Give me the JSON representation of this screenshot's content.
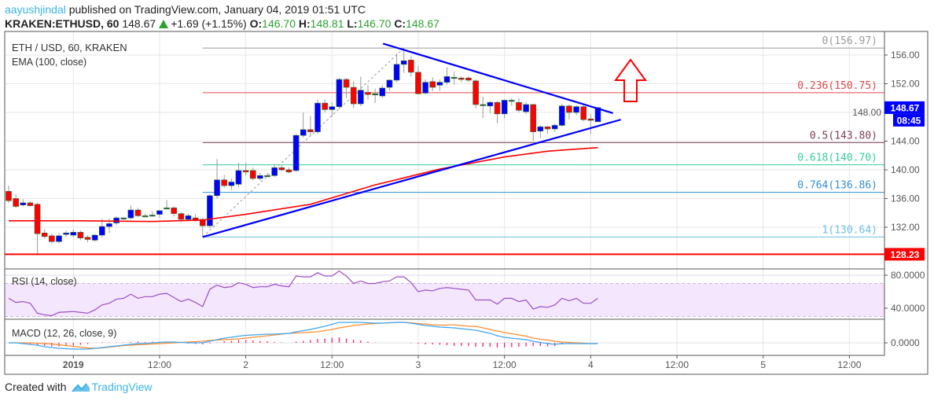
{
  "header": {
    "author": "aayushjindal",
    "published": " published on TradingView.com, January 04, 2019 01:51 UTC",
    "symbol": "KRAKEN:ETHUSD, 60",
    "last": "148.67",
    "change": "+1.69 (+1.15%)",
    "o_label": "O:",
    "o": "146.70",
    "h_label": "H:",
    "h": "148.81",
    "l_label": "L:",
    "l": "146.70",
    "c_label": "C:",
    "c": "148.67",
    "up_color": "#2ca02c"
  },
  "legend": {
    "main": "ETH / USD, 60, KRAKEN",
    "ema": "EMA (100, close)",
    "rsi": "RSI (14, close)",
    "macd": "MACD (12, 26, close, 9)"
  },
  "footer": {
    "created": "Created with",
    "brand": "TradingView"
  },
  "chart_data": {
    "type": "candlestick",
    "title": "ETH / USD, 60, KRAKEN",
    "colors": {
      "up": "#0000ff",
      "down": "#ff0000",
      "ema": "#ff0000",
      "trendline": "#0000ff",
      "rsi": "#9c4fc4",
      "macd": "#3da6f0",
      "signal": "#ff8c2e",
      "histogram": "#ff1f70"
    },
    "price_axis": {
      "ticks": [
        "156.00",
        "152.00",
        "148.00",
        "144.00",
        "140.00",
        "136.00",
        "132.00"
      ],
      "range": [
        127,
        159
      ]
    },
    "time_axis": {
      "ticks": [
        "2019",
        "12:00",
        "2",
        "12:00",
        "3",
        "12:00",
        "4",
        "12:00",
        "5",
        "12:00"
      ],
      "bold": "2019"
    },
    "grid": true,
    "candles_ohlc": [
      [
        137.0,
        137.8,
        135.4,
        135.7
      ],
      [
        136.0,
        136.6,
        134.7,
        134.9
      ],
      [
        135.1,
        135.9,
        134.9,
        135.4
      ],
      [
        135.4,
        135.6,
        134.9,
        135.0
      ],
      [
        135.2,
        135.4,
        128.1,
        131.1
      ],
      [
        131.2,
        131.7,
        130.4,
        130.7
      ],
      [
        130.8,
        131.1,
        129.8,
        130.0
      ],
      [
        130.0,
        131.2,
        129.8,
        130.8
      ],
      [
        131.0,
        131.5,
        130.6,
        131.2
      ],
      [
        130.9,
        131.7,
        130.6,
        131.3
      ],
      [
        131.3,
        131.5,
        130.2,
        130.5
      ],
      [
        130.6,
        130.9,
        129.9,
        130.3
      ],
      [
        130.2,
        131.0,
        130.0,
        130.9
      ],
      [
        130.9,
        133.2,
        130.6,
        132.1
      ],
      [
        132.1,
        133.2,
        131.2,
        132.5
      ],
      [
        132.6,
        133.5,
        132.3,
        133.3
      ],
      [
        133.2,
        133.4,
        133.0,
        133.3
      ],
      [
        133.3,
        135.0,
        133.1,
        134.4
      ],
      [
        134.4,
        134.7,
        133.4,
        133.6
      ],
      [
        133.6,
        133.9,
        133.4,
        133.6
      ],
      [
        133.6,
        134.2,
        133.5,
        133.7
      ],
      [
        133.8,
        134.4,
        133.3,
        134.3
      ],
      [
        134.7,
        135.8,
        134.5,
        134.7
      ],
      [
        134.7,
        134.9,
        133.5,
        133.9
      ],
      [
        133.9,
        134.1,
        132.7,
        133.1
      ],
      [
        133.1,
        133.9,
        132.9,
        133.6
      ],
      [
        133.3,
        133.8,
        132.8,
        132.9
      ],
      [
        133.1,
        133.3,
        130.64,
        132.2
      ],
      [
        132.2,
        136.6,
        131.9,
        136.4
      ],
      [
        136.4,
        141.5,
        136.0,
        138.6
      ],
      [
        138.6,
        139.3,
        137.5,
        137.8
      ],
      [
        137.8,
        138.8,
        137.2,
        138.3
      ],
      [
        138.0,
        141.0,
        137.6,
        139.9
      ],
      [
        139.9,
        141.0,
        139.2,
        139.7
      ],
      [
        139.9,
        140.3,
        138.5,
        138.8
      ],
      [
        138.8,
        139.6,
        138.5,
        139.2
      ],
      [
        139.2,
        139.6,
        139.0,
        139.2
      ],
      [
        139.2,
        140.8,
        139.0,
        140.3
      ],
      [
        140.3,
        140.6,
        139.8,
        140.0
      ],
      [
        140.0,
        140.3,
        139.5,
        139.7
      ],
      [
        139.9,
        145.0,
        139.7,
        144.8
      ],
      [
        144.8,
        148.0,
        144.5,
        145.6
      ],
      [
        145.6,
        147.5,
        144.8,
        145.3
      ],
      [
        145.3,
        149.8,
        145.0,
        149.3
      ],
      [
        149.3,
        149.8,
        148.0,
        148.4
      ],
      [
        148.4,
        149.4,
        147.4,
        148.8
      ],
      [
        148.8,
        152.8,
        148.5,
        152.6
      ],
      [
        152.6,
        152.8,
        150.0,
        151.5
      ],
      [
        151.5,
        152.3,
        148.6,
        149.2
      ],
      [
        149.2,
        153.0,
        148.9,
        151.1
      ],
      [
        150.8,
        151.8,
        149.8,
        150.5
      ],
      [
        150.6,
        151.3,
        149.3,
        150.6
      ],
      [
        150.3,
        151.8,
        150.0,
        151.4
      ],
      [
        151.5,
        152.6,
        151.0,
        152.5
      ],
      [
        152.5,
        156.2,
        152.2,
        154.7
      ],
      [
        154.7,
        156.97,
        153.5,
        155.2
      ],
      [
        155.3,
        155.8,
        153.0,
        153.6
      ],
      [
        153.6,
        154.5,
        150.5,
        150.6
      ],
      [
        150.7,
        152.6,
        150.5,
        152.2
      ],
      [
        152.3,
        152.9,
        151.0,
        151.5
      ],
      [
        151.8,
        152.6,
        151.0,
        152.2
      ],
      [
        152.2,
        154.3,
        151.9,
        153.0
      ],
      [
        152.9,
        153.7,
        151.9,
        152.8
      ],
      [
        152.8,
        153.0,
        152.2,
        152.6
      ],
      [
        152.8,
        153.0,
        152.2,
        152.5
      ],
      [
        152.4,
        152.6,
        148.6,
        149.1
      ],
      [
        149.1,
        150.2,
        147.2,
        149.0
      ],
      [
        148.9,
        149.6,
        147.9,
        149.4
      ],
      [
        149.4,
        149.6,
        146.5,
        147.8
      ],
      [
        147.8,
        149.8,
        147.2,
        149.7
      ],
      [
        149.7,
        150.0,
        148.9,
        149.7
      ],
      [
        149.4,
        150.0,
        148.0,
        148.3
      ],
      [
        148.1,
        149.5,
        147.8,
        149.1
      ],
      [
        149.1,
        149.2,
        144.0,
        145.3
      ],
      [
        145.4,
        146.2,
        144.4,
        146.0
      ],
      [
        146.0,
        146.1,
        145.0,
        145.7
      ],
      [
        145.7,
        146.4,
        145.3,
        146.2
      ],
      [
        146.2,
        149.2,
        146.0,
        148.9
      ],
      [
        148.9,
        149.1,
        147.0,
        148.0
      ],
      [
        148.0,
        149.0,
        147.6,
        148.8
      ],
      [
        148.8,
        149.2,
        146.8,
        147.0
      ],
      [
        147.1,
        147.8,
        145.0,
        146.9
      ],
      [
        146.7,
        148.81,
        146.7,
        148.67
      ]
    ],
    "ema_100": [
      [
        0,
        132.9
      ],
      [
        10,
        132.9
      ],
      [
        20,
        132.8
      ],
      [
        27,
        133.0
      ],
      [
        33,
        133.8
      ],
      [
        42,
        135.2
      ],
      [
        51,
        137.9
      ],
      [
        60,
        140.1
      ],
      [
        69,
        141.8
      ],
      [
        75,
        142.6
      ],
      [
        82,
        143.1
      ]
    ],
    "fib_levels": [
      {
        "label": "0(156.97)",
        "price": 156.97,
        "color": "#9b9b9b"
      },
      {
        "label": "0.236(150.75)",
        "price": 150.75,
        "color": "#e0474c"
      },
      {
        "label": "0.5(143.80)",
        "price": 143.8,
        "color": "#7b3f5a"
      },
      {
        "label": "0.618(140.70)",
        "price": 140.7,
        "color": "#35cf97"
      },
      {
        "label": "0.764(136.86)",
        "price": 136.86,
        "color": "#2f8fd6"
      },
      {
        "label": "1(130.64)",
        "price": 130.64,
        "color": "#6cbfe6"
      }
    ],
    "support_line": {
      "price": 128.23,
      "label": "128.23",
      "color": "#ff0000"
    },
    "trendlines": [
      {
        "name": "upper",
        "from": [
          52.1,
          157.6
        ],
        "to": [
          84.1,
          147.9
        ]
      },
      {
        "name": "lower",
        "from": [
          27,
          130.64
        ],
        "to": [
          85.2,
          147.0
        ]
      }
    ],
    "fib_anchor": {
      "from": [
        27,
        130.64
      ],
      "to": [
        55,
        156.97
      ]
    },
    "last_price_label": "148.67",
    "countdown": "08:45",
    "rsi": {
      "ticks": [
        "80.0000",
        "40.0000"
      ],
      "band": [
        30,
        70
      ],
      "values": [
        52,
        47,
        48,
        46,
        34,
        32,
        31,
        35,
        35.5,
        36,
        35,
        34,
        38,
        44,
        46,
        51,
        52,
        57,
        52,
        54,
        54,
        57,
        58,
        53,
        48,
        51,
        47,
        42,
        63,
        68,
        65,
        66,
        71,
        69,
        65,
        66,
        66,
        69,
        67,
        66,
        79,
        78,
        78,
        83,
        79,
        79,
        85,
        79,
        70,
        73,
        70,
        70,
        72,
        73,
        78,
        78,
        71,
        60,
        62,
        61,
        64,
        65,
        64,
        63,
        62,
        50,
        50,
        50,
        45,
        52,
        52,
        48,
        50,
        39,
        42,
        41,
        44,
        52,
        49,
        52,
        46,
        46,
        52
      ]
    },
    "macd": {
      "ticks": [
        "0.0000"
      ],
      "macd": [
        0,
        0,
        -0.1,
        -0.2,
        -0.3,
        -0.5,
        -0.6,
        -0.7,
        -0.75,
        -0.8,
        -0.8,
        -0.8,
        -0.7,
        -0.6,
        -0.5,
        -0.4,
        -0.3,
        -0.2,
        -0.1,
        -0.1,
        0,
        0.05,
        0.1,
        0.1,
        0.05,
        0,
        0,
        0,
        0.2,
        0.4,
        0.6,
        0.7,
        0.85,
        0.95,
        1.0,
        1.05,
        1.1,
        1.1,
        1.15,
        1.2,
        1.4,
        1.55,
        1.7,
        1.9,
        2.1,
        2.35,
        2.6,
        2.6,
        2.6,
        2.6,
        2.55,
        2.5,
        2.5,
        2.55,
        2.6,
        2.6,
        2.5,
        2.35,
        2.2,
        2.1,
        2.0,
        1.95,
        1.9,
        1.8,
        1.7,
        1.6,
        1.4,
        1.2,
        0.9,
        0.7,
        0.6,
        0.5,
        0.4,
        0.2,
        0.05,
        -0.1,
        -0.2,
        -0.1,
        -0.1,
        -0.1,
        -0.1,
        -0.1,
        -0.1
      ],
      "signal": [
        0,
        0,
        0,
        0,
        -0.05,
        -0.1,
        -0.15,
        -0.25,
        -0.35,
        -0.45,
        -0.55,
        -0.65,
        -0.7,
        -0.65,
        -0.55,
        -0.45,
        -0.35,
        -0.3,
        -0.25,
        -0.2,
        -0.15,
        -0.1,
        -0.05,
        0,
        0.05,
        0.1,
        0.15,
        0.2,
        0.3,
        0.35,
        0.4,
        0.45,
        0.5,
        0.6,
        0.7,
        0.8,
        0.9,
        1.0,
        1.1,
        1.2,
        1.25,
        1.3,
        1.35,
        1.4,
        1.55,
        1.7,
        1.9,
        2.05,
        2.2,
        2.3,
        2.4,
        2.45,
        2.5,
        2.55,
        2.6,
        2.6,
        2.55,
        2.45,
        2.4,
        2.3,
        2.25,
        2.25,
        2.3,
        2.2,
        2.1,
        2.1,
        1.9,
        1.7,
        1.5,
        1.3,
        1.15,
        1.0,
        0.85,
        0.6,
        0.45,
        0.35,
        0.2,
        0.1,
        0.05,
        0,
        -0.05,
        -0.1,
        -0.1
      ]
    }
  }
}
